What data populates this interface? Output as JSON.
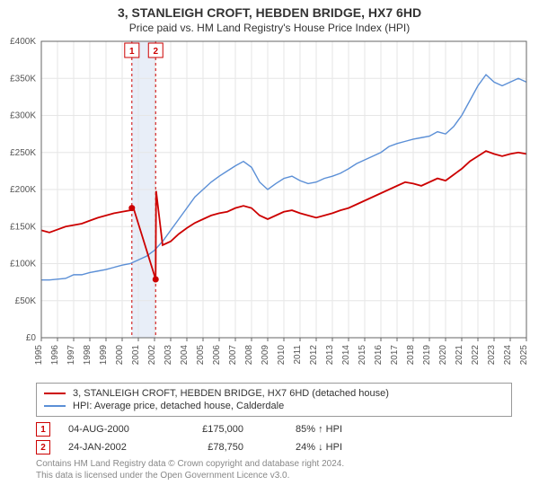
{
  "title": "3, STANLEIGH CROFT, HEBDEN BRIDGE, HX7 6HD",
  "subtitle": "Price paid vs. HM Land Registry's House Price Index (HPI)",
  "chart": {
    "type": "line",
    "background_color": "#ffffff",
    "grid_color": "#e6e6e6",
    "axis_color": "#666666",
    "tick_font_size": 10,
    "xlim_years": [
      1995,
      2025
    ],
    "ylim": [
      0,
      400000
    ],
    "ytick_step": 50000,
    "ytick_labels": [
      "£0",
      "£50K",
      "£100K",
      "£150K",
      "£200K",
      "£250K",
      "£300K",
      "£350K",
      "£400K"
    ],
    "xtick_years": [
      1995,
      1996,
      1997,
      1998,
      1999,
      2000,
      2001,
      2002,
      2003,
      2004,
      2005,
      2006,
      2007,
      2008,
      2009,
      2010,
      2011,
      2012,
      2013,
      2014,
      2015,
      2016,
      2017,
      2018,
      2019,
      2020,
      2021,
      2022,
      2023,
      2024,
      2025
    ],
    "series": [
      {
        "name": "property",
        "label": "3, STANLEIGH CROFT, HEBDEN BRIDGE, HX7 6HD (detached house)",
        "color": "#cc0000",
        "line_width": 1.8,
        "data": [
          [
            1995.0,
            145000
          ],
          [
            1995.5,
            142000
          ],
          [
            1996.0,
            146000
          ],
          [
            1996.5,
            150000
          ],
          [
            1997.0,
            152000
          ],
          [
            1997.5,
            154000
          ],
          [
            1998.0,
            158000
          ],
          [
            1998.5,
            162000
          ],
          [
            1999.0,
            165000
          ],
          [
            1999.5,
            168000
          ],
          [
            2000.0,
            170000
          ],
          [
            2000.5,
            172000
          ],
          [
            2000.7,
            175000
          ],
          [
            2002.07,
            78750
          ],
          [
            2002.1,
            198000
          ],
          [
            2002.5,
            125000
          ],
          [
            2003.0,
            130000
          ],
          [
            2003.5,
            140000
          ],
          [
            2004.0,
            148000
          ],
          [
            2004.5,
            155000
          ],
          [
            2005.0,
            160000
          ],
          [
            2005.5,
            165000
          ],
          [
            2006.0,
            168000
          ],
          [
            2006.5,
            170000
          ],
          [
            2007.0,
            175000
          ],
          [
            2007.5,
            178000
          ],
          [
            2008.0,
            175000
          ],
          [
            2008.5,
            165000
          ],
          [
            2009.0,
            160000
          ],
          [
            2009.5,
            165000
          ],
          [
            2010.0,
            170000
          ],
          [
            2010.5,
            172000
          ],
          [
            2011.0,
            168000
          ],
          [
            2011.5,
            165000
          ],
          [
            2012.0,
            162000
          ],
          [
            2012.5,
            165000
          ],
          [
            2013.0,
            168000
          ],
          [
            2013.5,
            172000
          ],
          [
            2014.0,
            175000
          ],
          [
            2014.5,
            180000
          ],
          [
            2015.0,
            185000
          ],
          [
            2015.5,
            190000
          ],
          [
            2016.0,
            195000
          ],
          [
            2016.5,
            200000
          ],
          [
            2017.0,
            205000
          ],
          [
            2017.5,
            210000
          ],
          [
            2018.0,
            208000
          ],
          [
            2018.5,
            205000
          ],
          [
            2019.0,
            210000
          ],
          [
            2019.5,
            215000
          ],
          [
            2020.0,
            212000
          ],
          [
            2020.5,
            220000
          ],
          [
            2021.0,
            228000
          ],
          [
            2021.5,
            238000
          ],
          [
            2022.0,
            245000
          ],
          [
            2022.5,
            252000
          ],
          [
            2023.0,
            248000
          ],
          [
            2023.5,
            245000
          ],
          [
            2024.0,
            248000
          ],
          [
            2024.5,
            250000
          ],
          [
            2025.0,
            248000
          ]
        ]
      },
      {
        "name": "hpi",
        "label": "HPI: Average price, detached house, Calderdale",
        "color": "#5b8fd6",
        "line_width": 1.4,
        "data": [
          [
            1995.0,
            78000
          ],
          [
            1995.5,
            78000
          ],
          [
            1996.0,
            79000
          ],
          [
            1996.5,
            80000
          ],
          [
            1997.0,
            85000
          ],
          [
            1997.5,
            85000
          ],
          [
            1998.0,
            88000
          ],
          [
            1998.5,
            90000
          ],
          [
            1999.0,
            92000
          ],
          [
            1999.5,
            95000
          ],
          [
            2000.0,
            98000
          ],
          [
            2000.5,
            100000
          ],
          [
            2001.0,
            105000
          ],
          [
            2001.5,
            110000
          ],
          [
            2002.0,
            118000
          ],
          [
            2002.5,
            130000
          ],
          [
            2003.0,
            145000
          ],
          [
            2003.5,
            160000
          ],
          [
            2004.0,
            175000
          ],
          [
            2004.5,
            190000
          ],
          [
            2005.0,
            200000
          ],
          [
            2005.5,
            210000
          ],
          [
            2006.0,
            218000
          ],
          [
            2006.5,
            225000
          ],
          [
            2007.0,
            232000
          ],
          [
            2007.5,
            238000
          ],
          [
            2008.0,
            230000
          ],
          [
            2008.5,
            210000
          ],
          [
            2009.0,
            200000
          ],
          [
            2009.5,
            208000
          ],
          [
            2010.0,
            215000
          ],
          [
            2010.5,
            218000
          ],
          [
            2011.0,
            212000
          ],
          [
            2011.5,
            208000
          ],
          [
            2012.0,
            210000
          ],
          [
            2012.5,
            215000
          ],
          [
            2013.0,
            218000
          ],
          [
            2013.5,
            222000
          ],
          [
            2014.0,
            228000
          ],
          [
            2014.5,
            235000
          ],
          [
            2015.0,
            240000
          ],
          [
            2015.5,
            245000
          ],
          [
            2016.0,
            250000
          ],
          [
            2016.5,
            258000
          ],
          [
            2017.0,
            262000
          ],
          [
            2017.5,
            265000
          ],
          [
            2018.0,
            268000
          ],
          [
            2018.5,
            270000
          ],
          [
            2019.0,
            272000
          ],
          [
            2019.5,
            278000
          ],
          [
            2020.0,
            275000
          ],
          [
            2020.5,
            285000
          ],
          [
            2021.0,
            300000
          ],
          [
            2021.5,
            320000
          ],
          [
            2022.0,
            340000
          ],
          [
            2022.5,
            355000
          ],
          [
            2023.0,
            345000
          ],
          [
            2023.5,
            340000
          ],
          [
            2024.0,
            345000
          ],
          [
            2024.5,
            350000
          ],
          [
            2025.0,
            345000
          ]
        ]
      }
    ],
    "sales": [
      {
        "n": "1",
        "year": 2000.6,
        "price": 175000,
        "color": "#cc0000"
      },
      {
        "n": "2",
        "year": 2002.07,
        "price": 78750,
        "color": "#cc0000"
      }
    ],
    "sale_band": {
      "from_year": 2000.6,
      "to_year": 2002.07,
      "fill": "#e8eef8"
    }
  },
  "legend": {
    "items": [
      {
        "color": "#cc0000",
        "text": "3, STANLEIGH CROFT, HEBDEN BRIDGE, HX7 6HD (detached house)"
      },
      {
        "color": "#5b8fd6",
        "text": "HPI: Average price, detached house, Calderdale"
      }
    ]
  },
  "annotations": [
    {
      "n": "1",
      "date": "04-AUG-2000",
      "price": "£175,000",
      "delta": "85% ↑ HPI"
    },
    {
      "n": "2",
      "date": "24-JAN-2002",
      "price": "£78,750",
      "delta": "24% ↓ HPI"
    }
  ],
  "footer": {
    "line1": "Contains HM Land Registry data © Crown copyright and database right 2024.",
    "line2": "This data is licensed under the Open Government Licence v3.0."
  }
}
